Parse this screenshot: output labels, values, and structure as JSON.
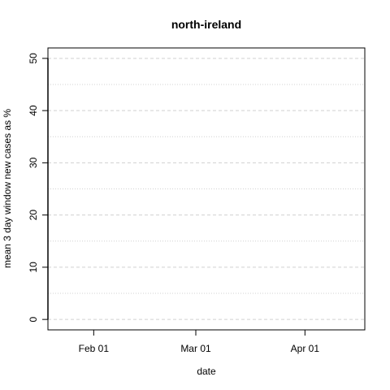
{
  "chart_data": {
    "type": "line",
    "title": "north-ireland",
    "xlabel": "date",
    "ylabel": "mean  3  day window new cases as %",
    "x_ticks": [
      "2020-02-01",
      "2020-03-01",
      "2020-04-01"
    ],
    "x_tick_labels": [
      "Feb 01",
      "Mar 01",
      "Apr 01"
    ],
    "xlim": [
      "2020-01-19",
      "2020-04-18"
    ],
    "y_ticks": [
      0,
      10,
      20,
      30,
      40,
      50
    ],
    "y_minor_ticks": [
      5,
      15,
      25,
      35,
      45
    ],
    "ylim": [
      -2,
      52
    ],
    "grid": true,
    "series": [
      {
        "x": [
          "2020-01-19",
          "2020-01-19"
        ],
        "y": [
          0,
          50
        ]
      }
    ]
  }
}
